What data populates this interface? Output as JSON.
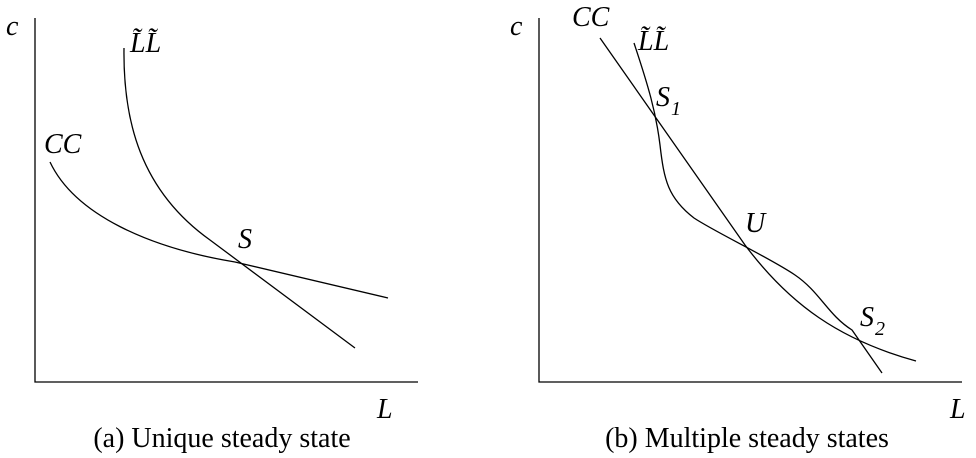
{
  "panel_a": {
    "y_axis_label": "c",
    "x_axis_label": "L",
    "curve_cc_label": "CC",
    "curve_ll_label": "L̃L̃",
    "intersection_label": "S",
    "caption": "(a) Unique steady state"
  },
  "panel_b": {
    "y_axis_label": "c",
    "x_axis_label": "L",
    "curve_cc_label": "CC",
    "curve_ll_label": "L̃L̃",
    "point_s1_label": "S",
    "point_s1_subscript": "1",
    "point_u_label": "U",
    "point_s2_label": "S",
    "point_s2_subscript": "2",
    "caption": "(b) Multiple steady states"
  }
}
